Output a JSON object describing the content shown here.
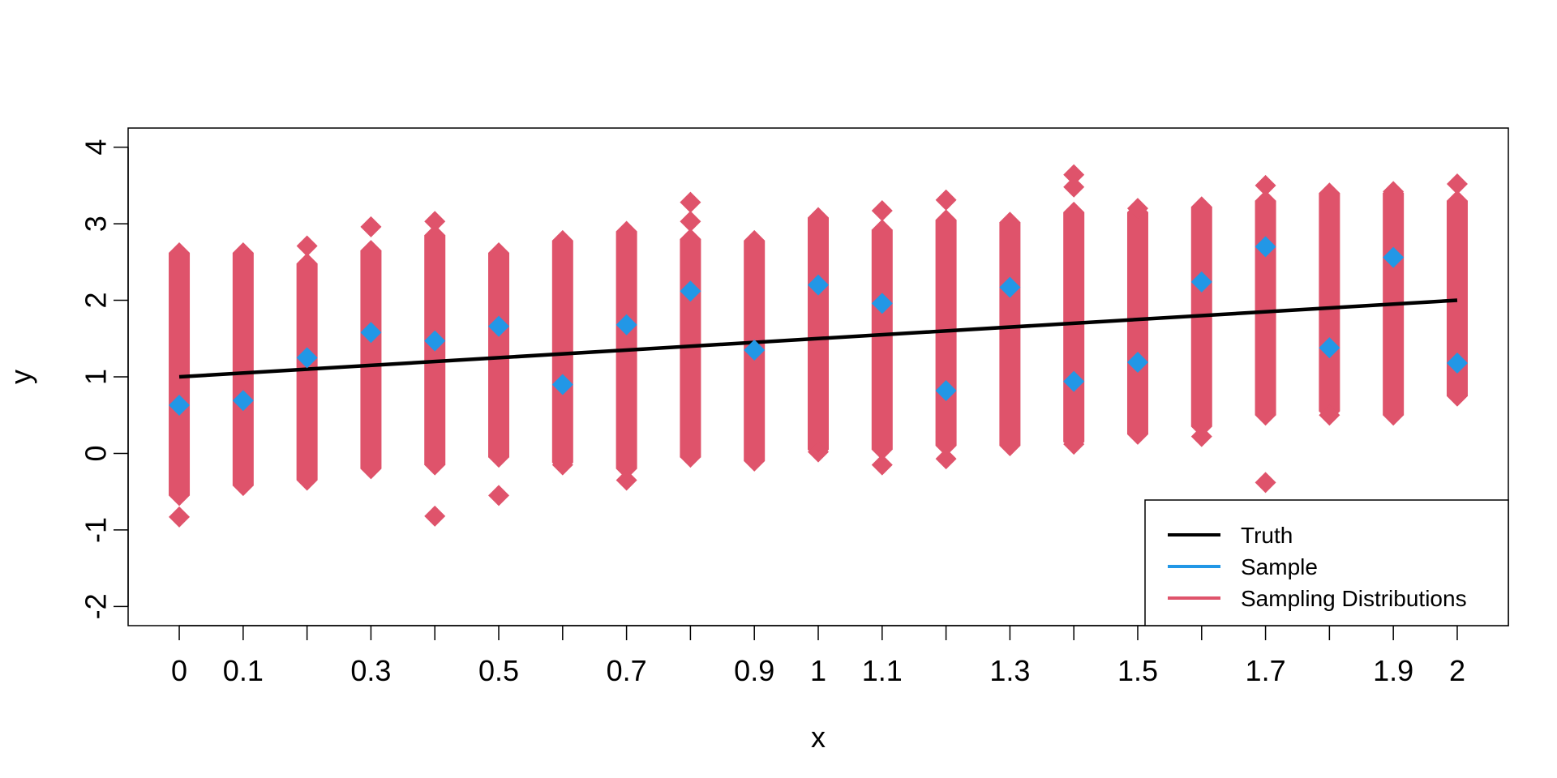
{
  "chart_data": {
    "type": "scatter",
    "title": "",
    "xlabel": "x",
    "ylabel": "y",
    "xlim": [
      -0.08,
      2.08
    ],
    "ylim": [
      -2.25,
      4.25
    ],
    "x_ticks": [
      0,
      0.1,
      0.3,
      0.5,
      0.7,
      0.9,
      1,
      1.1,
      1.3,
      1.5,
      1.7,
      1.9,
      2
    ],
    "x_tick_labels": [
      "0",
      "0.1",
      "0.3",
      "0.5",
      "0.7",
      "0.9",
      "1",
      "1.1",
      "1.3",
      "1.5",
      "1.7",
      "1.9",
      "2"
    ],
    "y_ticks": [
      -2,
      -1,
      0,
      1,
      2,
      3,
      4
    ],
    "y_tick_labels": [
      "-2",
      "-1",
      "0",
      "1",
      "2",
      "3",
      "4"
    ],
    "grid": false,
    "legend": {
      "position": "bottom-right",
      "entries": [
        {
          "label": "Truth",
          "color": "#000000"
        },
        {
          "label": "Sample",
          "color": "#2297E6"
        },
        {
          "label": "Sampling Distributions",
          "color": "#DF536B"
        }
      ]
    },
    "series": [
      {
        "name": "Truth",
        "kind": "line",
        "color": "#000000",
        "x": [
          0,
          2
        ],
        "y": [
          1,
          2
        ]
      },
      {
        "name": "Sample",
        "kind": "points",
        "color": "#2297E6",
        "x": [
          0,
          0.1,
          0.2,
          0.3,
          0.4,
          0.5,
          0.6,
          0.7,
          0.8,
          0.9,
          1.0,
          1.1,
          1.2,
          1.3,
          1.4,
          1.5,
          1.6,
          1.7,
          1.8,
          1.9,
          2.0
        ],
        "y": [
          0.63,
          0.69,
          1.25,
          1.58,
          1.47,
          1.66,
          0.9,
          1.68,
          2.12,
          1.35,
          2.2,
          1.96,
          0.82,
          2.17,
          0.94,
          1.19,
          2.24,
          2.7,
          1.38,
          2.56,
          1.18
        ]
      },
      {
        "name": "Sampling Distributions",
        "kind": "column-ranges",
        "color": "#DF536B",
        "x": [
          0,
          0.1,
          0.2,
          0.3,
          0.4,
          0.5,
          0.6,
          0.7,
          0.8,
          0.9,
          1.0,
          1.1,
          1.2,
          1.3,
          1.4,
          1.5,
          1.6,
          1.7,
          1.8,
          1.9,
          2.0
        ],
        "bulk_low": [
          -0.55,
          -0.42,
          -0.35,
          -0.2,
          -0.15,
          -0.05,
          -0.12,
          -0.2,
          -0.05,
          -0.1,
          0.05,
          0.05,
          0.1,
          0.1,
          0.15,
          0.25,
          0.35,
          0.5,
          0.55,
          0.5,
          0.75
        ],
        "bulk_high": [
          2.62,
          2.62,
          2.48,
          2.65,
          2.85,
          2.62,
          2.78,
          2.9,
          2.8,
          2.78,
          3.08,
          2.92,
          3.05,
          3.02,
          3.15,
          3.15,
          3.22,
          3.3,
          3.4,
          3.4,
          3.3
        ],
        "outliers_x": [
          0,
          0.2,
          0.3,
          0.4,
          0.4,
          0.5,
          0.6,
          0.7,
          0.8,
          0.8,
          1.0,
          1.1,
          1.1,
          1.2,
          1.2,
          1.2,
          1.4,
          1.4,
          1.4,
          1.5,
          1.6,
          1.7,
          1.7,
          1.8,
          1.9,
          2.0,
          2.0
        ],
        "outliers_y": [
          -0.83,
          2.71,
          2.96,
          3.03,
          -0.82,
          -0.55,
          -0.15,
          -0.35,
          3.28,
          3.03,
          0.02,
          3.17,
          -0.15,
          3.31,
          0.28,
          -0.07,
          3.64,
          3.48,
          0.12,
          3.2,
          0.22,
          3.5,
          -0.38,
          0.5,
          3.42,
          3.52,
          0.75
        ]
      }
    ]
  }
}
